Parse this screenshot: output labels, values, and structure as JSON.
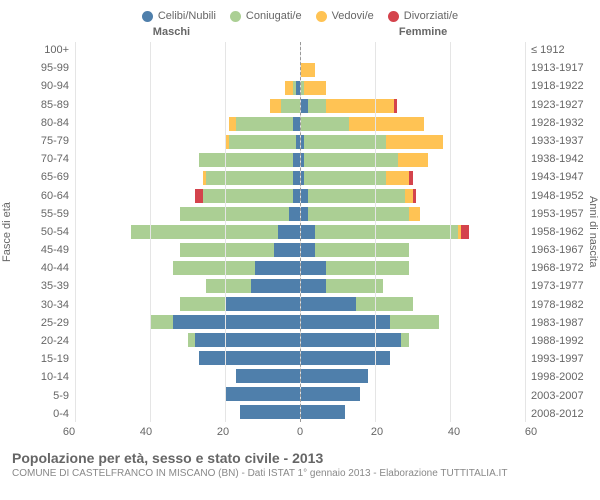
{
  "legend": [
    {
      "label": "Celibi/Nubili",
      "color": "#4f7fab"
    },
    {
      "label": "Coniugati/e",
      "color": "#abcf94"
    },
    {
      "label": "Vedovi/e",
      "color": "#ffc354"
    },
    {
      "label": "Divorziati/e",
      "color": "#d4434c"
    }
  ],
  "header_male": "Maschi",
  "header_female": "Femmine",
  "ylabel_left": "Fasce di età",
  "ylabel_right": "Anni di nascita",
  "xmax": 60,
  "xticks": [
    60,
    40,
    20,
    0,
    20,
    40,
    60
  ],
  "rows": [
    {
      "age": "100+",
      "birth": "≤ 1912",
      "m": [
        0,
        0,
        0,
        0
      ],
      "f": [
        0,
        0,
        0,
        0
      ]
    },
    {
      "age": "95-99",
      "birth": "1913-1917",
      "m": [
        0,
        0,
        0,
        0
      ],
      "f": [
        0,
        0,
        4,
        0
      ]
    },
    {
      "age": "90-94",
      "birth": "1918-1922",
      "m": [
        1,
        1,
        2,
        0
      ],
      "f": [
        0,
        1,
        6,
        0
      ]
    },
    {
      "age": "85-89",
      "birth": "1923-1927",
      "m": [
        0,
        5,
        3,
        0
      ],
      "f": [
        2,
        5,
        18,
        1
      ]
    },
    {
      "age": "80-84",
      "birth": "1928-1932",
      "m": [
        2,
        15,
        2,
        0
      ],
      "f": [
        0,
        13,
        20,
        0
      ]
    },
    {
      "age": "75-79",
      "birth": "1933-1937",
      "m": [
        1,
        18,
        1,
        0
      ],
      "f": [
        1,
        22,
        15,
        0
      ]
    },
    {
      "age": "70-74",
      "birth": "1938-1942",
      "m": [
        2,
        25,
        0,
        0
      ],
      "f": [
        1,
        25,
        8,
        0
      ]
    },
    {
      "age": "65-69",
      "birth": "1943-1947",
      "m": [
        2,
        23,
        1,
        0
      ],
      "f": [
        1,
        22,
        6,
        1
      ]
    },
    {
      "age": "60-64",
      "birth": "1948-1952",
      "m": [
        2,
        24,
        0,
        2
      ],
      "f": [
        2,
        26,
        2,
        1
      ]
    },
    {
      "age": "55-59",
      "birth": "1953-1957",
      "m": [
        3,
        29,
        0,
        0
      ],
      "f": [
        2,
        27,
        3,
        0
      ]
    },
    {
      "age": "50-54",
      "birth": "1958-1962",
      "m": [
        6,
        39,
        0,
        0
      ],
      "f": [
        4,
        38,
        1,
        2
      ]
    },
    {
      "age": "45-49",
      "birth": "1963-1967",
      "m": [
        7,
        25,
        0,
        0
      ],
      "f": [
        4,
        25,
        0,
        0
      ]
    },
    {
      "age": "40-44",
      "birth": "1968-1972",
      "m": [
        12,
        22,
        0,
        0
      ],
      "f": [
        7,
        22,
        0,
        0
      ]
    },
    {
      "age": "35-39",
      "birth": "1973-1977",
      "m": [
        13,
        12,
        0,
        0
      ],
      "f": [
        7,
        15,
        0,
        0
      ]
    },
    {
      "age": "30-34",
      "birth": "1978-1982",
      "m": [
        20,
        12,
        0,
        0
      ],
      "f": [
        15,
        15,
        0,
        0
      ]
    },
    {
      "age": "25-29",
      "birth": "1983-1987",
      "m": [
        34,
        6,
        0,
        0
      ],
      "f": [
        24,
        13,
        0,
        0
      ]
    },
    {
      "age": "20-24",
      "birth": "1988-1992",
      "m": [
        28,
        2,
        0,
        0
      ],
      "f": [
        27,
        2,
        0,
        0
      ]
    },
    {
      "age": "15-19",
      "birth": "1993-1997",
      "m": [
        27,
        0,
        0,
        0
      ],
      "f": [
        24,
        0,
        0,
        0
      ]
    },
    {
      "age": "10-14",
      "birth": "1998-2002",
      "m": [
        17,
        0,
        0,
        0
      ],
      "f": [
        18,
        0,
        0,
        0
      ]
    },
    {
      "age": "5-9",
      "birth": "2003-2007",
      "m": [
        20,
        0,
        0,
        0
      ],
      "f": [
        16,
        0,
        0,
        0
      ]
    },
    {
      "age": "0-4",
      "birth": "2008-2012",
      "m": [
        16,
        0,
        0,
        0
      ],
      "f": [
        12,
        0,
        0,
        0
      ]
    }
  ],
  "segment_colors": [
    "#4f7fab",
    "#abcf94",
    "#ffc354",
    "#d4434c"
  ],
  "title": "Popolazione per età, sesso e stato civile - 2013",
  "subtitle": "COMUNE DI CASTELFRANCO IN MISCANO (BN) - Dati ISTAT 1° gennaio 2013 - Elaborazione TUTTITALIA.IT"
}
